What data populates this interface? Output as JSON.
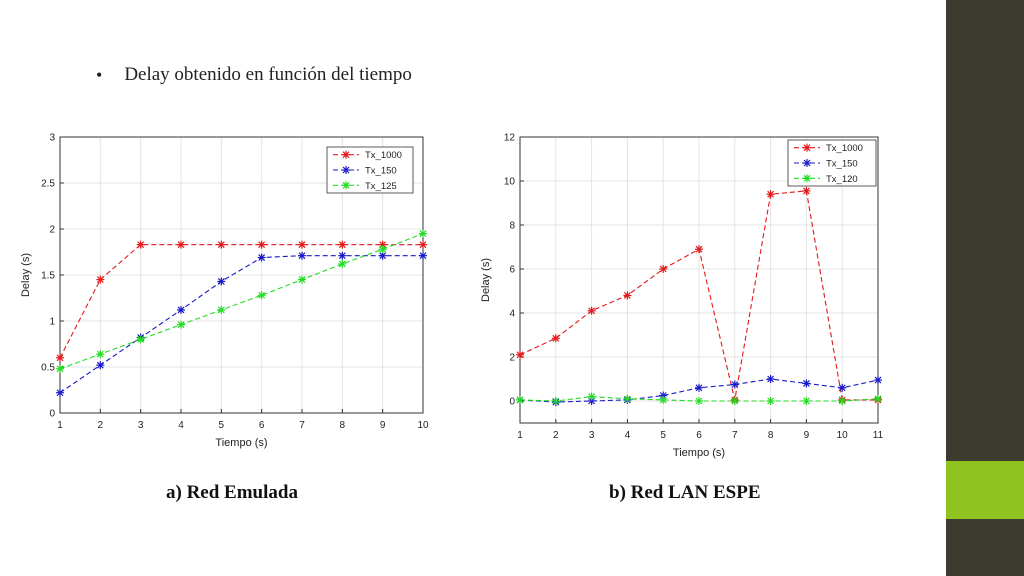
{
  "slide": {
    "bullet_symbol": "•",
    "bullet_text": "Delay obtenido en función del tiempo",
    "caption_a": "a) Red Emulada",
    "caption_b": "b) Red LAN ESPE",
    "colors": {
      "side_band": "#3d3b30",
      "side_accent": "#8fc31f"
    }
  },
  "chart_data": [
    {
      "type": "line",
      "xlabel": "Tiempo (s)",
      "ylabel": "Delay (s)",
      "xlim": [
        1,
        10
      ],
      "ylim": [
        0,
        3
      ],
      "xticks": [
        1,
        2,
        3,
        4,
        5,
        6,
        7,
        8,
        9,
        10
      ],
      "yticks": [
        0,
        0.5,
        1,
        1.5,
        2,
        2.5,
        3
      ],
      "grid": true,
      "legend_position": "top-right",
      "marker": "asterisk",
      "line_style": "dashed",
      "series": [
        {
          "name": "Tx_1000",
          "color": "#e3191c",
          "x": [
            1,
            2,
            3,
            4,
            5,
            6,
            7,
            8,
            9,
            10
          ],
          "y": [
            0.6,
            1.45,
            1.83,
            1.83,
            1.83,
            1.83,
            1.83,
            1.83,
            1.83,
            1.83
          ]
        },
        {
          "name": "Tx_150",
          "color": "#1919c8",
          "x": [
            1,
            2,
            3,
            4,
            5,
            6,
            7,
            8,
            9,
            10
          ],
          "y": [
            0.22,
            0.52,
            0.82,
            1.12,
            1.43,
            1.69,
            1.71,
            1.71,
            1.71,
            1.71
          ]
        },
        {
          "name": "Tx_125",
          "color": "#22dd22",
          "x": [
            1,
            2,
            3,
            4,
            5,
            6,
            7,
            8,
            9,
            10
          ],
          "y": [
            0.48,
            0.64,
            0.8,
            0.96,
            1.12,
            1.28,
            1.45,
            1.62,
            1.78,
            1.95
          ]
        }
      ]
    },
    {
      "type": "line",
      "xlabel": "Tiempo (s)",
      "ylabel": "Delay (s)",
      "xlim": [
        1,
        11
      ],
      "ylim": [
        -1,
        12
      ],
      "xticks": [
        1,
        2,
        3,
        4,
        5,
        6,
        7,
        8,
        9,
        10,
        11
      ],
      "yticks": [
        0,
        2,
        4,
        6,
        8,
        10,
        12
      ],
      "grid": true,
      "legend_position": "top-right",
      "marker": "asterisk",
      "line_style": "dashed",
      "series": [
        {
          "name": "Tx_1000",
          "color": "#e3191c",
          "x": [
            1,
            2,
            3,
            4,
            5,
            6,
            7,
            8,
            9,
            10,
            11
          ],
          "y": [
            2.1,
            2.85,
            4.1,
            4.8,
            6.0,
            6.9,
            0.05,
            9.4,
            9.55,
            0.05,
            0.05
          ]
        },
        {
          "name": "Tx_150",
          "color": "#1919c8",
          "x": [
            1,
            2,
            3,
            4,
            5,
            6,
            7,
            8,
            9,
            10,
            11
          ],
          "y": [
            0.05,
            -0.05,
            0.0,
            0.05,
            0.25,
            0.6,
            0.75,
            1.0,
            0.8,
            0.6,
            0.95
          ]
        },
        {
          "name": "Tx_120",
          "color": "#22dd22",
          "x": [
            1,
            2,
            3,
            4,
            5,
            6,
            7,
            8,
            9,
            10,
            11
          ],
          "y": [
            0.05,
            0.0,
            0.2,
            0.1,
            0.05,
            0.0,
            0.0,
            0.0,
            0.0,
            0.0,
            0.1
          ]
        }
      ]
    }
  ]
}
